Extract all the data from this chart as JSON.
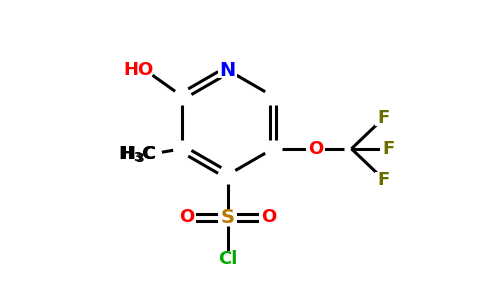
{
  "background_color": "#ffffff",
  "atom_colors": {
    "N": "#0000ff",
    "O": "#ff0000",
    "F": "#6b6b00",
    "Cl": "#00aa00",
    "S": "#b87800",
    "C": "#000000",
    "H": "#000000"
  },
  "bond_color": "#000000",
  "bond_width": 2.2,
  "font_size": 13,
  "figsize": [
    4.84,
    3.0
  ],
  "dpi": 100
}
